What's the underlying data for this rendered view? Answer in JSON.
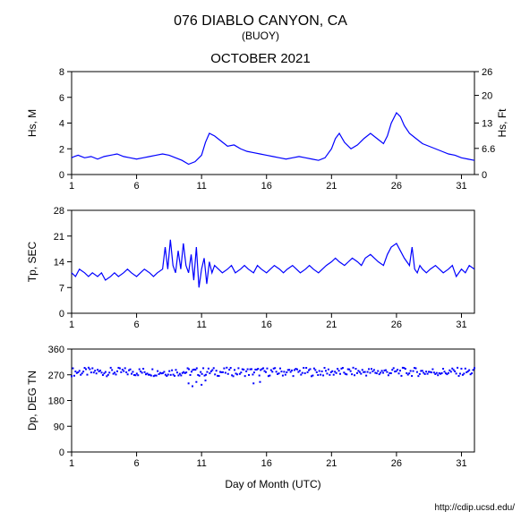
{
  "title": "076 DIABLO CANYON, CA",
  "subtitle": "(BUOY)",
  "month_label": "OCTOBER 2021",
  "xlabel": "Day of Month (UTC)",
  "footer": "http://cdip.ucsd.edu/",
  "background_color": "#ffffff",
  "border_color": "#000000",
  "line_color": "#0000ff",
  "text_color": "#000000",
  "chart1": {
    "ylabel_left": "Hs, M",
    "ylabel_right": "Hs, Ft",
    "xlim": [
      1,
      32
    ],
    "ylim_left": [
      0,
      8
    ],
    "yticks_left": [
      0,
      2,
      4,
      6,
      8
    ],
    "ylim_right": [
      0,
      26
    ],
    "yticks_right": [
      0,
      6.6,
      13,
      20,
      26
    ],
    "xticks": [
      1,
      6,
      11,
      16,
      21,
      26,
      31
    ],
    "data": [
      [
        1,
        1.3
      ],
      [
        1.2,
        1.4
      ],
      [
        1.5,
        1.5
      ],
      [
        2,
        1.3
      ],
      [
        2.5,
        1.4
      ],
      [
        3,
        1.2
      ],
      [
        3.5,
        1.4
      ],
      [
        4,
        1.5
      ],
      [
        4.5,
        1.6
      ],
      [
        5,
        1.4
      ],
      [
        5.5,
        1.3
      ],
      [
        6,
        1.2
      ],
      [
        6.5,
        1.3
      ],
      [
        7,
        1.4
      ],
      [
        7.5,
        1.5
      ],
      [
        8,
        1.6
      ],
      [
        8.5,
        1.5
      ],
      [
        9,
        1.3
      ],
      [
        9.5,
        1.1
      ],
      [
        10,
        0.8
      ],
      [
        10.5,
        1.0
      ],
      [
        11,
        1.5
      ],
      [
        11.3,
        2.5
      ],
      [
        11.6,
        3.2
      ],
      [
        12,
        3.0
      ],
      [
        12.5,
        2.6
      ],
      [
        13,
        2.2
      ],
      [
        13.5,
        2.3
      ],
      [
        14,
        2.0
      ],
      [
        14.5,
        1.8
      ],
      [
        15,
        1.7
      ],
      [
        15.5,
        1.6
      ],
      [
        16,
        1.5
      ],
      [
        16.5,
        1.4
      ],
      [
        17,
        1.3
      ],
      [
        17.5,
        1.2
      ],
      [
        18,
        1.3
      ],
      [
        18.5,
        1.4
      ],
      [
        19,
        1.3
      ],
      [
        19.5,
        1.2
      ],
      [
        20,
        1.1
      ],
      [
        20.5,
        1.3
      ],
      [
        21,
        2.0
      ],
      [
        21.3,
        2.8
      ],
      [
        21.6,
        3.2
      ],
      [
        22,
        2.5
      ],
      [
        22.5,
        2.0
      ],
      [
        23,
        2.3
      ],
      [
        23.5,
        2.8
      ],
      [
        24,
        3.2
      ],
      [
        24.5,
        2.8
      ],
      [
        25,
        2.4
      ],
      [
        25.3,
        3.0
      ],
      [
        25.6,
        4.0
      ],
      [
        26,
        4.8
      ],
      [
        26.3,
        4.5
      ],
      [
        26.6,
        3.8
      ],
      [
        27,
        3.2
      ],
      [
        27.5,
        2.8
      ],
      [
        28,
        2.4
      ],
      [
        28.5,
        2.2
      ],
      [
        29,
        2.0
      ],
      [
        29.5,
        1.8
      ],
      [
        30,
        1.6
      ],
      [
        30.5,
        1.5
      ],
      [
        31,
        1.3
      ],
      [
        31.5,
        1.2
      ],
      [
        32,
        1.1
      ]
    ]
  },
  "chart2": {
    "ylabel": "Tp, SEC",
    "xlim": [
      1,
      32
    ],
    "ylim": [
      0,
      28
    ],
    "yticks": [
      0,
      7,
      14,
      21,
      28
    ],
    "xticks": [
      1,
      6,
      11,
      16,
      21,
      26,
      31
    ],
    "data": [
      [
        1,
        11
      ],
      [
        1.3,
        10
      ],
      [
        1.6,
        12
      ],
      [
        2,
        11
      ],
      [
        2.3,
        10
      ],
      [
        2.6,
        11
      ],
      [
        3,
        10
      ],
      [
        3.3,
        11
      ],
      [
        3.6,
        9
      ],
      [
        4,
        10
      ],
      [
        4.3,
        11
      ],
      [
        4.6,
        10
      ],
      [
        5,
        11
      ],
      [
        5.3,
        12
      ],
      [
        5.6,
        11
      ],
      [
        6,
        10
      ],
      [
        6.3,
        11
      ],
      [
        6.6,
        12
      ],
      [
        7,
        11
      ],
      [
        7.3,
        10
      ],
      [
        7.6,
        11
      ],
      [
        8,
        12
      ],
      [
        8.2,
        18
      ],
      [
        8.4,
        12
      ],
      [
        8.6,
        20
      ],
      [
        8.8,
        13
      ],
      [
        9,
        11
      ],
      [
        9.2,
        17
      ],
      [
        9.4,
        12
      ],
      [
        9.6,
        19
      ],
      [
        9.8,
        13
      ],
      [
        10,
        11
      ],
      [
        10.2,
        16
      ],
      [
        10.4,
        9
      ],
      [
        10.6,
        18
      ],
      [
        10.8,
        7
      ],
      [
        11,
        12
      ],
      [
        11.2,
        15
      ],
      [
        11.4,
        8
      ],
      [
        11.6,
        14
      ],
      [
        11.8,
        11
      ],
      [
        12,
        13
      ],
      [
        12.3,
        12
      ],
      [
        12.6,
        11
      ],
      [
        13,
        12
      ],
      [
        13.3,
        13
      ],
      [
        13.6,
        11
      ],
      [
        14,
        12
      ],
      [
        14.3,
        13
      ],
      [
        14.6,
        12
      ],
      [
        15,
        11
      ],
      [
        15.3,
        13
      ],
      [
        15.6,
        12
      ],
      [
        16,
        11
      ],
      [
        16.3,
        12
      ],
      [
        16.6,
        13
      ],
      [
        17,
        12
      ],
      [
        17.3,
        11
      ],
      [
        17.6,
        12
      ],
      [
        18,
        13
      ],
      [
        18.3,
        12
      ],
      [
        18.6,
        11
      ],
      [
        19,
        12
      ],
      [
        19.3,
        13
      ],
      [
        19.6,
        12
      ],
      [
        20,
        11
      ],
      [
        20.3,
        12
      ],
      [
        20.6,
        13
      ],
      [
        21,
        14
      ],
      [
        21.3,
        15
      ],
      [
        21.6,
        14
      ],
      [
        22,
        13
      ],
      [
        22.3,
        14
      ],
      [
        22.6,
        15
      ],
      [
        23,
        14
      ],
      [
        23.3,
        13
      ],
      [
        23.6,
        15
      ],
      [
        24,
        16
      ],
      [
        24.3,
        15
      ],
      [
        24.6,
        14
      ],
      [
        25,
        13
      ],
      [
        25.3,
        16
      ],
      [
        25.6,
        18
      ],
      [
        26,
        19
      ],
      [
        26.3,
        17
      ],
      [
        26.6,
        15
      ],
      [
        27,
        13
      ],
      [
        27.2,
        18
      ],
      [
        27.4,
        12
      ],
      [
        27.6,
        11
      ],
      [
        27.8,
        13
      ],
      [
        28,
        12
      ],
      [
        28.3,
        11
      ],
      [
        28.6,
        12
      ],
      [
        29,
        13
      ],
      [
        29.3,
        12
      ],
      [
        29.6,
        11
      ],
      [
        30,
        12
      ],
      [
        30.3,
        13
      ],
      [
        30.6,
        10
      ],
      [
        31,
        12
      ],
      [
        31.3,
        11
      ],
      [
        31.6,
        13
      ],
      [
        32,
        12
      ]
    ]
  },
  "chart3": {
    "ylabel": "Dp, DEG TN",
    "xlim": [
      1,
      32
    ],
    "ylim": [
      0,
      360
    ],
    "yticks": [
      0,
      90,
      180,
      270,
      360
    ],
    "xticks": [
      1,
      6,
      11,
      16,
      21,
      26,
      31
    ],
    "data_center": 280,
    "data_spread": 15,
    "outliers": [
      [
        10,
        240
      ],
      [
        10.3,
        230
      ],
      [
        10.6,
        245
      ],
      [
        11,
        235
      ],
      [
        11.3,
        250
      ],
      [
        15,
        240
      ],
      [
        15.5,
        245
      ]
    ]
  }
}
